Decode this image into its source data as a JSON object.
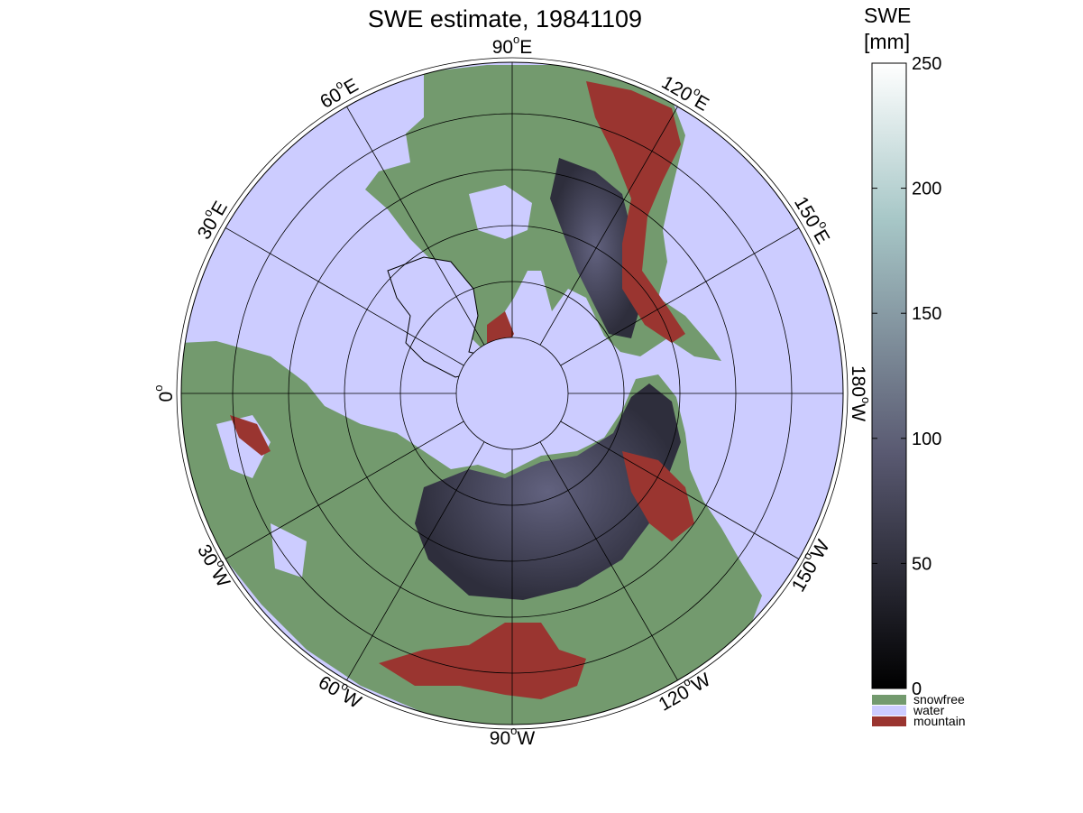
{
  "map": {
    "title": "SWE estimate, 19841109",
    "projection": "north polar stereographic",
    "center_longitude_up": "90°W",
    "lon_labels": [
      {
        "deg": "90",
        "hemi": "W",
        "lon": -90
      },
      {
        "deg": "120",
        "hemi": "W",
        "lon": -120
      },
      {
        "deg": "150",
        "hemi": "W",
        "lon": -150
      },
      {
        "deg": "180",
        "hemi": "W",
        "lon": 180
      },
      {
        "deg": "150",
        "hemi": "E",
        "lon": 150
      },
      {
        "deg": "120",
        "hemi": "E",
        "lon": 120
      },
      {
        "deg": "90",
        "hemi": "E",
        "lon": 90
      },
      {
        "deg": "60",
        "hemi": "E",
        "lon": 60
      },
      {
        "deg": "30",
        "hemi": "E",
        "lon": 30
      },
      {
        "deg": "0",
        "hemi": "",
        "lon": 0
      },
      {
        "deg": "30",
        "hemi": "W",
        "lon": -30
      },
      {
        "deg": "60",
        "hemi": "W",
        "lon": -60
      }
    ],
    "graticule": {
      "meridian_step_deg": 30,
      "latitude_circles": 6,
      "grid": true
    }
  },
  "colorbar": {
    "title_line1": "SWE",
    "title_line2": "[mm]",
    "min": 0,
    "max": 250,
    "ticks": [
      "0",
      "50",
      "100",
      "150",
      "200",
      "250"
    ],
    "tick_values": [
      0,
      50,
      100,
      150,
      200,
      250
    ],
    "colormap": "bone",
    "low_color": "#000000",
    "high_color": "#ffffff"
  },
  "legend": {
    "items": [
      {
        "label": "snowfree",
        "color": "#739a6e"
      },
      {
        "label": "water",
        "color": "#ccccff"
      },
      {
        "label": "mountain",
        "color": "#9a3530"
      }
    ]
  },
  "colors": {
    "water": "#ccccff",
    "land_snowfree": "#739a6e",
    "mountain": "#9a3530",
    "snow_low": "#3a3a4e",
    "snow_mid": "#5a5a78"
  }
}
